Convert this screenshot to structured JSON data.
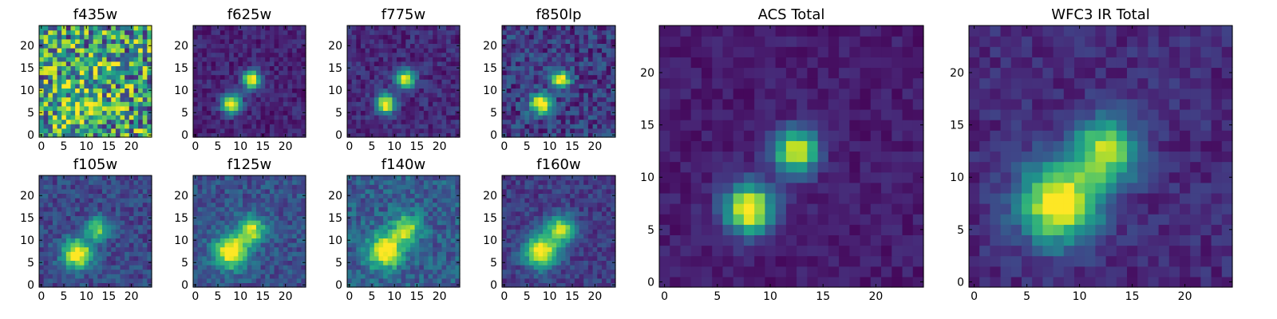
{
  "figure": {
    "background": "#ffffff",
    "colormap": "viridis"
  },
  "chart_data": [
    {
      "type": "heatmap",
      "title": "f435w",
      "xticks": [
        0,
        5,
        10,
        15,
        20
      ],
      "yticks": [
        0,
        5,
        10,
        15,
        20
      ],
      "xlim": [
        0,
        24
      ],
      "ylim": [
        0,
        24
      ],
      "grid": false,
      "sources": [
        {
          "x": 8,
          "y": 6,
          "amp": 0.25,
          "sigma": 3.0
        },
        {
          "x": 13,
          "y": 13,
          "amp": 0.15,
          "sigma": 3.0
        }
      ],
      "background_level": 0.55,
      "noise": 0.45
    },
    {
      "type": "heatmap",
      "title": "f625w",
      "xticks": [
        0,
        5,
        10,
        15,
        20
      ],
      "yticks": [
        0,
        5,
        10,
        15,
        20
      ],
      "xlim": [
        0,
        24
      ],
      "ylim": [
        0,
        24
      ],
      "grid": false,
      "sources": [
        {
          "x": 8,
          "y": 7,
          "amp": 1.0,
          "sigma": 1.5
        },
        {
          "x": 12.5,
          "y": 12.5,
          "amp": 0.95,
          "sigma": 1.4
        }
      ],
      "background_level": 0.1,
      "noise": 0.09
    },
    {
      "type": "heatmap",
      "title": "f775w",
      "xticks": [
        0,
        5,
        10,
        15,
        20
      ],
      "yticks": [
        0,
        5,
        10,
        15,
        20
      ],
      "xlim": [
        0,
        24
      ],
      "ylim": [
        0,
        24
      ],
      "grid": false,
      "sources": [
        {
          "x": 8,
          "y": 7,
          "amp": 1.0,
          "sigma": 1.5
        },
        {
          "x": 12.5,
          "y": 12.5,
          "amp": 0.9,
          "sigma": 1.4
        }
      ],
      "background_level": 0.12,
      "noise": 0.1
    },
    {
      "type": "heatmap",
      "title": "f850lp",
      "xticks": [
        0,
        5,
        10,
        15,
        20
      ],
      "yticks": [
        0,
        5,
        10,
        15,
        20
      ],
      "xlim": [
        0,
        24
      ],
      "ylim": [
        0,
        24
      ],
      "grid": false,
      "sources": [
        {
          "x": 8,
          "y": 7,
          "amp": 0.9,
          "sigma": 1.6
        },
        {
          "x": 12.5,
          "y": 12.5,
          "amp": 0.85,
          "sigma": 1.4
        }
      ],
      "background_level": 0.18,
      "noise": 0.16
    },
    {
      "type": "heatmap",
      "title": "f105w",
      "xticks": [
        0,
        5,
        10,
        15,
        20
      ],
      "yticks": [
        0,
        5,
        10,
        15,
        20
      ],
      "xlim": [
        0,
        24
      ],
      "ylim": [
        0,
        24
      ],
      "grid": false,
      "sources": [
        {
          "x": 8,
          "y": 7,
          "amp": 0.9,
          "sigma": 2.2
        },
        {
          "x": 12.5,
          "y": 12.5,
          "amp": 0.6,
          "sigma": 1.8
        }
      ],
      "background_level": 0.22,
      "noise": 0.12
    },
    {
      "type": "heatmap",
      "title": "f125w",
      "xticks": [
        0,
        5,
        10,
        15,
        20
      ],
      "yticks": [
        0,
        5,
        10,
        15,
        20
      ],
      "xlim": [
        0,
        24
      ],
      "ylim": [
        0,
        24
      ],
      "grid": false,
      "sources": [
        {
          "x": 8,
          "y": 7.5,
          "amp": 0.9,
          "sigma": 2.5
        },
        {
          "x": 12.5,
          "y": 12.5,
          "amp": 0.7,
          "sigma": 2.0
        }
      ],
      "background_level": 0.25,
      "noise": 0.12
    },
    {
      "type": "heatmap",
      "title": "f140w",
      "xticks": [
        0,
        5,
        10,
        15,
        20
      ],
      "yticks": [
        0,
        5,
        10,
        15,
        20
      ],
      "xlim": [
        0,
        24
      ],
      "ylim": [
        0,
        24
      ],
      "grid": false,
      "sources": [
        {
          "x": 8,
          "y": 7.5,
          "amp": 0.8,
          "sigma": 2.6
        },
        {
          "x": 12.5,
          "y": 12.5,
          "amp": 0.6,
          "sigma": 2.2
        }
      ],
      "background_level": 0.3,
      "noise": 0.14
    },
    {
      "type": "heatmap",
      "title": "f160w",
      "xticks": [
        0,
        5,
        10,
        15,
        20
      ],
      "yticks": [
        0,
        5,
        10,
        15,
        20
      ],
      "xlim": [
        0,
        24
      ],
      "ylim": [
        0,
        24
      ],
      "grid": false,
      "sources": [
        {
          "x": 8,
          "y": 7.5,
          "amp": 0.9,
          "sigma": 2.5
        },
        {
          "x": 12.5,
          "y": 12.5,
          "amp": 0.7,
          "sigma": 2.2
        }
      ],
      "background_level": 0.18,
      "noise": 0.1
    },
    {
      "type": "heatmap",
      "title": "ACS Total",
      "xticks": [
        0,
        5,
        10,
        15,
        20
      ],
      "yticks": [
        0,
        5,
        10,
        15,
        20
      ],
      "xlim": [
        0,
        24
      ],
      "ylim": [
        0,
        24
      ],
      "grid": false,
      "sources": [
        {
          "x": 8,
          "y": 7,
          "amp": 1.0,
          "sigma": 1.6
        },
        {
          "x": 12.5,
          "y": 12.5,
          "amp": 0.95,
          "sigma": 1.4
        }
      ],
      "background_level": 0.08,
      "noise": 0.06
    },
    {
      "type": "heatmap",
      "title": "WFC3 IR Total",
      "xticks": [
        0,
        5,
        10,
        15,
        20
      ],
      "yticks": [
        0,
        5,
        10,
        15,
        20
      ],
      "xlim": [
        0,
        24
      ],
      "ylim": [
        0,
        24
      ],
      "grid": false,
      "sources": [
        {
          "x": 8,
          "y": 7.5,
          "amp": 0.95,
          "sigma": 2.6
        },
        {
          "x": 12.5,
          "y": 12.5,
          "amp": 0.75,
          "sigma": 2.2
        }
      ],
      "background_level": 0.12,
      "noise": 0.08
    }
  ]
}
